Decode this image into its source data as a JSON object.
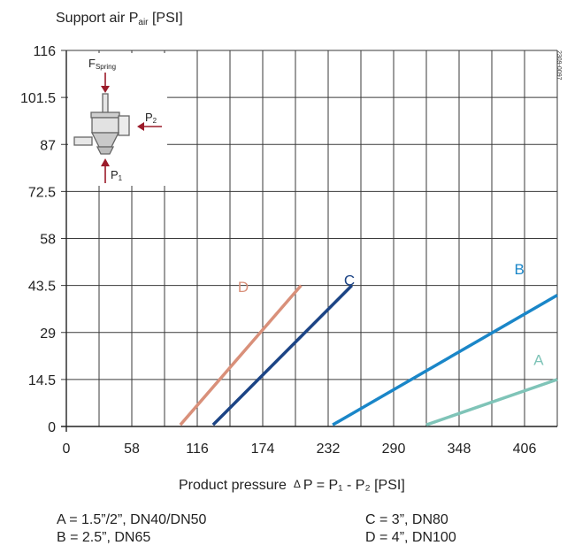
{
  "chart_data": {
    "type": "line",
    "ylabel_main": "Support air P",
    "ylabel_sub": "air",
    "ylabel_unit": " [PSI]",
    "xlabel_prefix": "Product pressure",
    "xlabel_formula": "P = P₁ - P₂ [PSI]",
    "xlabel_delta": "Δ",
    "x_ticks": [
      0,
      58,
      116,
      174,
      232,
      290,
      348,
      406
    ],
    "y_ticks": [
      "0",
      "14.5",
      "29",
      "43.5",
      "58",
      "72.5",
      "87",
      "101.5",
      "116"
    ],
    "y_tick_values": [
      0,
      14.5,
      29,
      43.5,
      58,
      72.5,
      87,
      101.5,
      116
    ],
    "xlim": [
      0,
      435
    ],
    "ylim": [
      0,
      116
    ],
    "grid": true,
    "series": [
      {
        "name": "A",
        "color": "#7fc4b8",
        "x": [
          319,
          435
        ],
        "y": [
          0.5,
          14.5
        ]
      },
      {
        "name": "B",
        "color": "#1a86c8",
        "x": [
          236,
          435
        ],
        "y": [
          0.5,
          40.5
        ]
      },
      {
        "name": "C",
        "color": "#1c4485",
        "x": [
          130,
          253
        ],
        "y": [
          0.5,
          43.5
        ]
      },
      {
        "name": "D",
        "color": "#d9907a",
        "x": [
          101,
          208
        ],
        "y": [
          0.5,
          43.5
        ]
      }
    ]
  },
  "diagram": {
    "f_spring_main": "F",
    "f_spring_sub": "Spring",
    "p2_main": "P",
    "p2_sub": "2",
    "p1_main": "P",
    "p1_sub": "1",
    "arrow_color": "#9b1b2a"
  },
  "figure_code": "2309-0097",
  "legend": {
    "a": "A = 1.5”/2”, DN40/DN50",
    "b": "B = 2.5”, DN65",
    "c": "C = 3”, DN80",
    "d": "D = 4”, DN100"
  }
}
